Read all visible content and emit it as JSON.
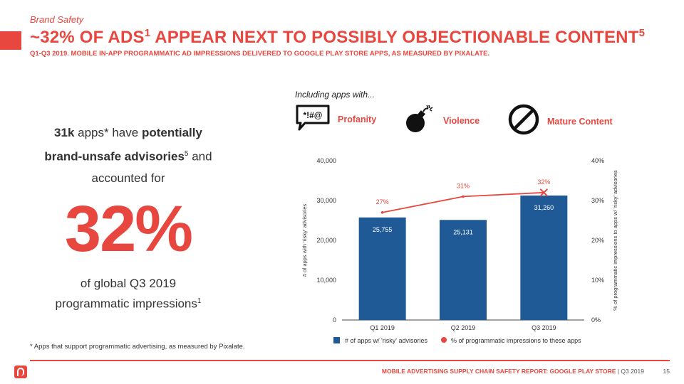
{
  "header": {
    "section_label": "Brand Safety",
    "title_part1": "~32% OF ADS",
    "title_sup1": "1",
    "title_part2": " APPEAR NEXT TO POSSIBLY OBJECTIONABLE CONTENT",
    "title_sup2": "5",
    "subtitle": "Q1-Q3 2019. MOBILE IN-APP PROGRAMMATIC AD IMPRESSIONS DELIVERED TO GOOGLE PLAY STORE APPS, AS MEASURED BY PIXALATE."
  },
  "stat": {
    "count_bold": "31k",
    "count_rest": " apps* have ",
    "phrase_bold_1": "potentially",
    "phrase_bold_2": "brand-unsafe advisories",
    "phrase_sup": "5",
    "and": " and",
    "accounted": "accounted for",
    "big_value": "32%",
    "bottom_1": "of global Q3 2019",
    "bottom_2": "programmatic impressions",
    "bottom_sup": "1"
  },
  "footnote": "* Apps that support programmatic advertising, as measured by Pixalate.",
  "categories": {
    "intro": "Including apps with...",
    "profanity_icon_text": "*!#@",
    "items": [
      {
        "label": "Profanity",
        "icon": "speech-bubble-profanity-icon"
      },
      {
        "label": "Violence",
        "icon": "bomb-icon"
      },
      {
        "label": "Mature Content",
        "icon": "prohibited-icon"
      }
    ]
  },
  "colors": {
    "accent": "#e8473f",
    "bar": "#1f5a96",
    "line": "#e8473f"
  },
  "chart_data": {
    "type": "bar",
    "categories": [
      "Q1 2019",
      "Q2 2019",
      "Q3 2019"
    ],
    "series": [
      {
        "name": "# of apps w/ 'risky' advisories",
        "type": "bar",
        "axis": "left",
        "values": [
          25755,
          25131,
          31260
        ],
        "labels": [
          "25,755",
          "25,131",
          "31,260"
        ]
      },
      {
        "name": "% of programmatic impressions to these apps",
        "type": "line",
        "axis": "right",
        "values": [
          27,
          31,
          32
        ],
        "labels": [
          "27%",
          "31%",
          "32%"
        ]
      }
    ],
    "ylabel": "# of apps with 'risky' advisories",
    "y2label": "% of programmatic impressions to apps w/ 'risky' advisories",
    "ylim": [
      0,
      40000
    ],
    "y2lim": [
      0,
      40
    ],
    "y_ticks": [
      "0",
      "10,000",
      "20,000",
      "30,000",
      "40,000"
    ],
    "y2_ticks": [
      "0%",
      "10%",
      "20%",
      "30%",
      "40%"
    ],
    "grid": false,
    "legend": "bottom"
  },
  "footer": {
    "report": "MOBILE ADVERTISING SUPPLY CHAIN SAFETY REPORT: GOOGLE PLAY STORE",
    "period": " | Q3 2019",
    "page": "15"
  }
}
